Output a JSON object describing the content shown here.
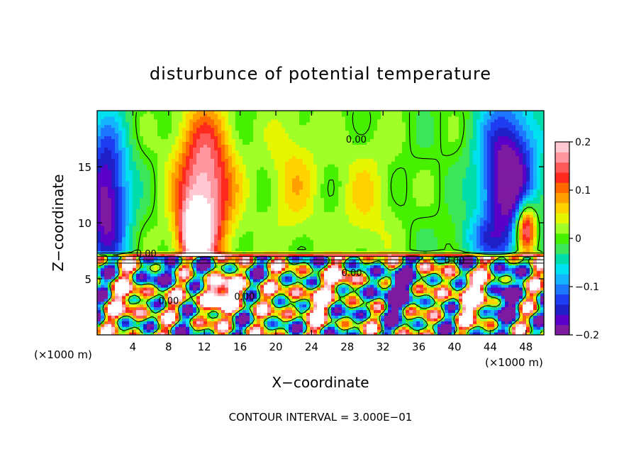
{
  "chart_data": {
    "type": "heatmap",
    "title": "disturbunce of potential temperature",
    "xlabel": "X−coordinate",
    "ylabel": "Z−coordinate",
    "x_unit_left": "(×1000 m)",
    "x_unit_right": "(×1000 m)",
    "xlim": [
      0,
      50
    ],
    "ylim": [
      0,
      20
    ],
    "x_ticks": [
      4,
      8,
      12,
      16,
      20,
      24,
      28,
      32,
      36,
      40,
      44,
      48
    ],
    "y_ticks": [
      5,
      10,
      15
    ],
    "colorbar": {
      "min": -0.2,
      "max": 0.2,
      "tick_values": [
        0.2,
        0.1,
        0,
        -0.1,
        -0.2
      ],
      "tick_labels": [
        "0.2",
        "0.1",
        "0",
        "−0.1",
        "−0.2"
      ],
      "colors": [
        "#7d1aa0",
        "#5a00c8",
        "#2020c8",
        "#1e3cf0",
        "#1e78ff",
        "#14b4ff",
        "#00e1f0",
        "#00dcaa",
        "#3ce65a",
        "#46f000",
        "#a0ff28",
        "#e6f500",
        "#ffd200",
        "#ffa000",
        "#ff6a00",
        "#ff2a1e",
        "#ff5a5a",
        "#ff96a0",
        "#ffc8d2"
      ]
    },
    "contour_labels": [
      "0.00",
      "0.00",
      "0.00",
      "0.00",
      "0.00",
      "0.00"
    ],
    "contour_interval_text": "CONTOUR INTERVAL = 3.000E−01",
    "description_fields": {
      "upper_layer": [
        {
          "x": 12,
          "z": 13,
          "value": 0.2,
          "sx": 3.2,
          "sz": 7
        },
        {
          "x": 11,
          "z": 9,
          "value": 0.22,
          "sx": 1.6,
          "sz": 2.6
        },
        {
          "x": 22,
          "z": 14,
          "value": 0.06,
          "sx": 3,
          "sz": 6
        },
        {
          "x": 30,
          "z": 12,
          "value": 0.05,
          "sx": 3,
          "sz": 6
        },
        {
          "x": 1,
          "z": 12,
          "value": -0.2,
          "sx": 2.5,
          "sz": 7
        },
        {
          "x": 46,
          "z": 14,
          "value": -0.22,
          "sx": 3.2,
          "sz": 7
        },
        {
          "x": 48,
          "z": 9.5,
          "value": 0.24,
          "sx": 1.2,
          "sz": 2.4
        },
        {
          "x": 43,
          "z": 8.5,
          "value": -0.06,
          "sx": 3,
          "sz": 2
        }
      ],
      "lower_layer": [
        {
          "x": 14,
          "z": 3.5,
          "value": 0.25,
          "sx": 3.5,
          "sz": 1.6
        },
        {
          "x": 24,
          "z": 3,
          "value": 0.18,
          "sx": 2,
          "sz": 2
        },
        {
          "x": 33,
          "z": 4,
          "value": -0.22,
          "sx": 2.5,
          "sz": 2
        },
        {
          "x": 41.5,
          "z": 3.5,
          "value": 0.24,
          "sx": 2.2,
          "sz": 1.8
        },
        {
          "x": 46,
          "z": 3,
          "value": -0.18,
          "sx": 1.5,
          "sz": 2
        },
        {
          "x": 4,
          "z": 3,
          "value": 0.15,
          "sx": 2,
          "sz": 2
        },
        {
          "x": 8,
          "z": 5.5,
          "value": -0.15,
          "sx": 2,
          "sz": 1
        },
        {
          "x": 28,
          "z": 5,
          "value": 0.2,
          "sx": 1.5,
          "sz": 1.5
        }
      ]
    }
  }
}
